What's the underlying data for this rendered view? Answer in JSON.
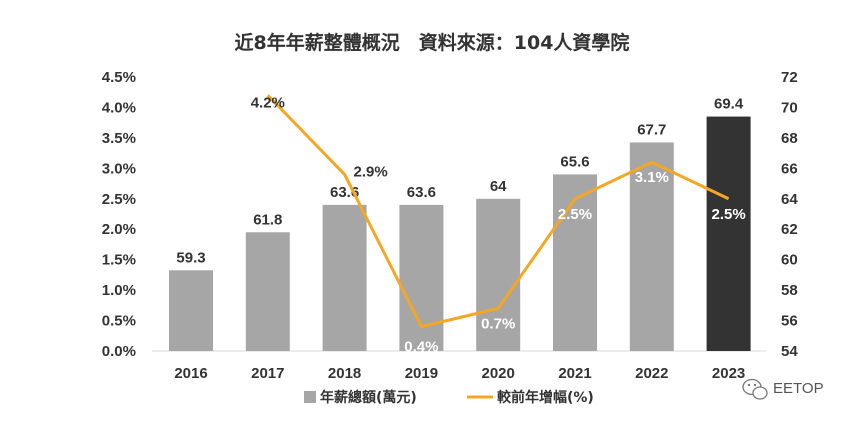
{
  "chart_data": {
    "type": "bar+line",
    "title": "近8年年薪整體概況　資料來源：104人資學院",
    "categories": [
      "2016",
      "2017",
      "2018",
      "2019",
      "2020",
      "2021",
      "2022",
      "2023"
    ],
    "series": [
      {
        "name": "年薪總額(萬元)",
        "type": "bar",
        "axis": "right",
        "values": [
          59.3,
          61.8,
          63.6,
          63.6,
          64,
          65.6,
          67.7,
          69.4
        ],
        "labels": [
          "59.3",
          "61.8",
          "63.6",
          "63.6",
          "64",
          "65.6",
          "67.7",
          "69.4"
        ]
      },
      {
        "name": "較前年增幅(%)",
        "type": "line",
        "axis": "left",
        "values": [
          null,
          4.2,
          2.9,
          0.4,
          0.7,
          2.5,
          3.1,
          2.5
        ],
        "labels": [
          "",
          "4.2%",
          "2.9%",
          "0.4%",
          "0.7%",
          "2.5%",
          "3.1%",
          "2.5%"
        ]
      }
    ],
    "y_left": {
      "min": 0,
      "max": 4.5,
      "step": 0.5,
      "ticks": [
        "0.0%",
        "0.5%",
        "1.0%",
        "1.5%",
        "2.0%",
        "2.5%",
        "3.0%",
        "3.5%",
        "4.0%",
        "4.5%"
      ]
    },
    "y_right": {
      "min": 54,
      "max": 72,
      "step": 2,
      "ticks": [
        "54",
        "56",
        "58",
        "60",
        "62",
        "64",
        "66",
        "68",
        "70",
        "72"
      ]
    },
    "legend": [
      "年薪總額(萬元)",
      "較前年增幅(%)"
    ],
    "legend_position": "bottom"
  },
  "colors": {
    "bar": "#a6a6a6",
    "bar_highlight": "#333333",
    "line": "#f5a623",
    "text": "#333333",
    "white_label": "#ffffff"
  },
  "watermark": "EETOP"
}
